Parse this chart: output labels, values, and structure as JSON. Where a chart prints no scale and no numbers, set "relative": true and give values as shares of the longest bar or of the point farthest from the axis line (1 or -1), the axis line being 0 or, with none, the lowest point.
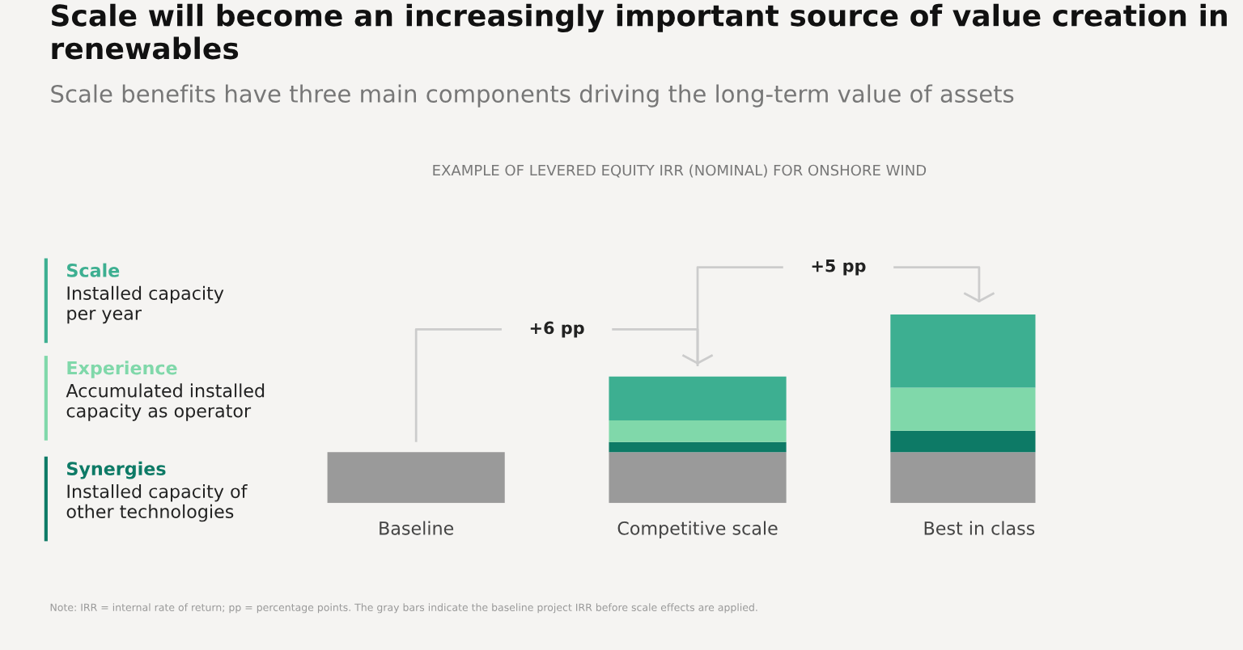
{
  "chart_data": {
    "type": "bar",
    "stacked": true,
    "relative": true,
    "legend": "left",
    "grid": false,
    "title": "Scale will become an increasingly important source of value creation in renewables",
    "subtitle": "Scale benefits have three main components driving the long-term value of assets",
    "categories": [
      "Baseline",
      "Competitive scale",
      "Best in class"
    ],
    "series": [
      {
        "color": "#9a9a9a",
        "values": [
          0.27,
          0.27,
          0.27
        ]
      },
      {
        "name": "Synergies",
        "color": "#0d7a66",
        "values": [
          null,
          0.054,
          0.114
        ]
      },
      {
        "name": "Experience",
        "color": "#80d8aa",
        "values": [
          null,
          0.114,
          0.228
        ]
      },
      {
        "name": "Scale",
        "color": "#3daf91",
        "values": [
          null,
          0.233,
          0.388
        ]
      }
    ],
    "annotations": [
      "EXAMPLE OF LEVERED EQUITY IRR (NOMINAL) FOR ONSHORE WIND",
      "Installed capacity of\nother technologies",
      "Accumulated installed\ncapacity as operator",
      "Installed capacity\nper year",
      "+6 pp",
      "+5 pp",
      "Note: IRR = internal rate of return; pp = percentage points. The gray bars indicate the baseline project IRR before scale effects are applied."
    ]
  }
}
